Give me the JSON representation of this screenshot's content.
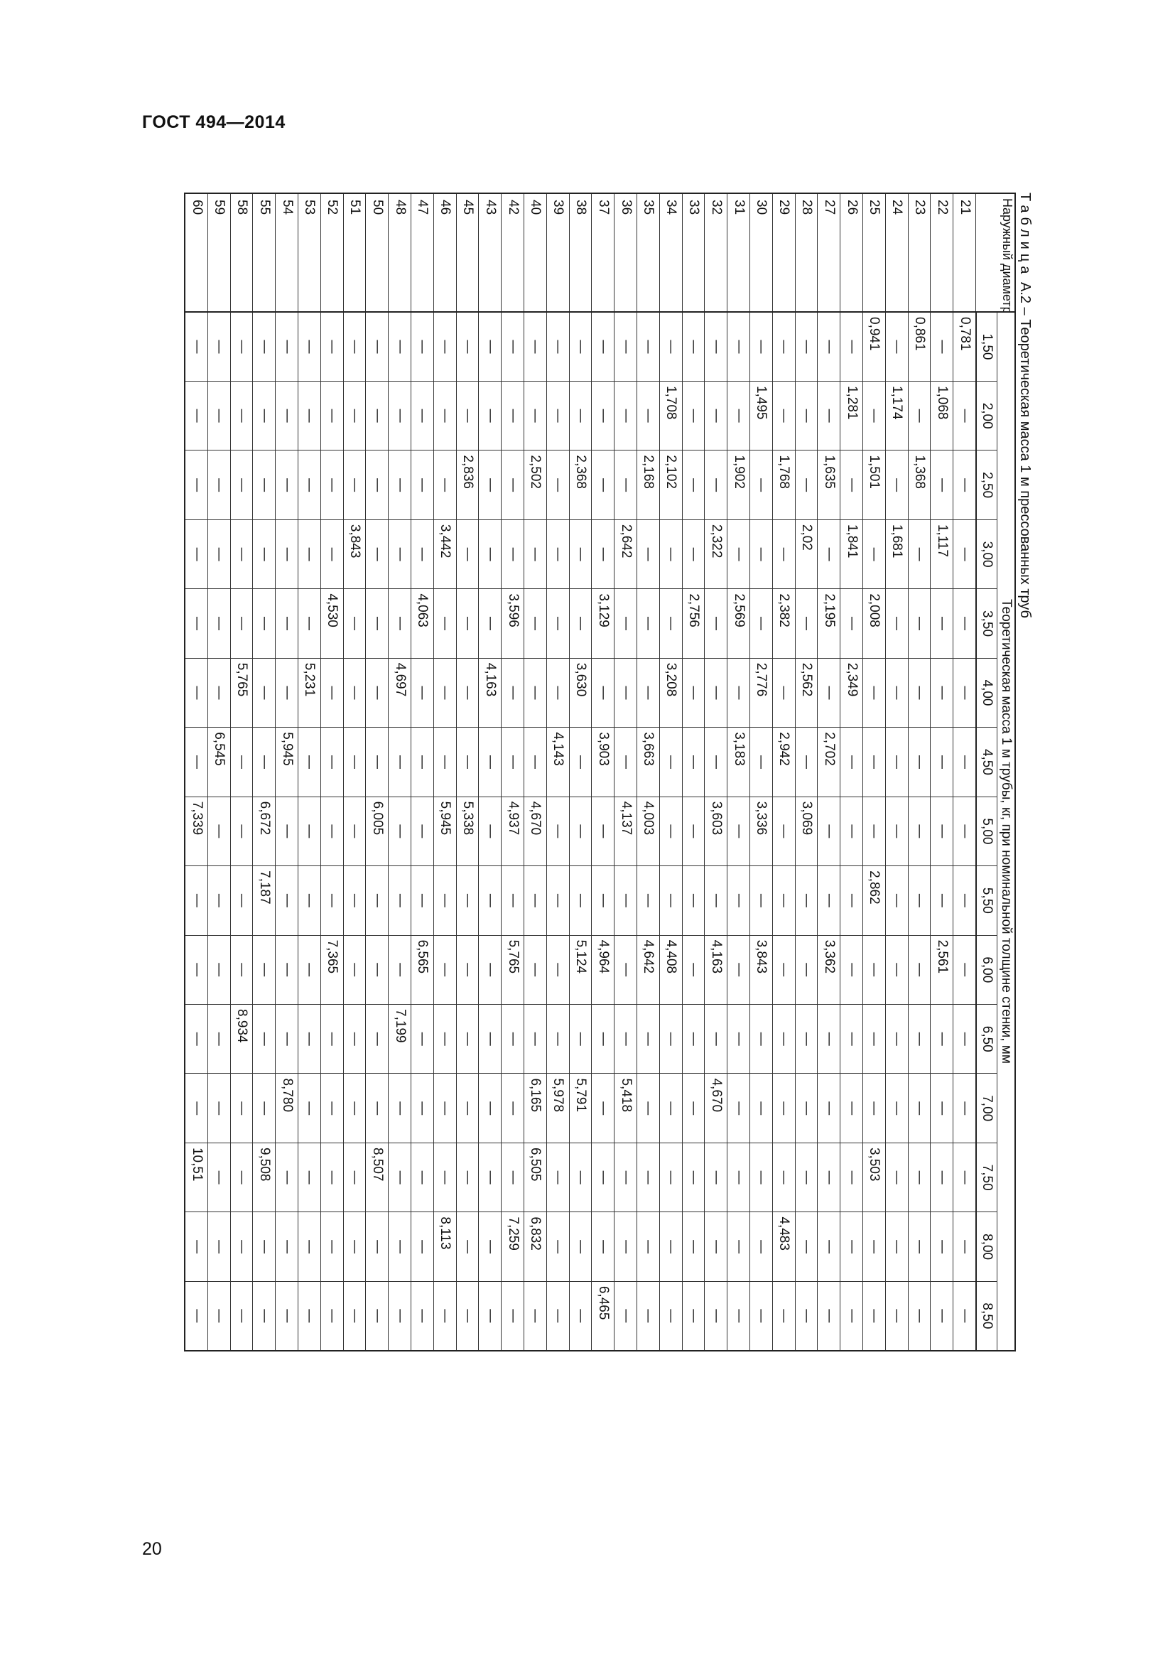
{
  "document": {
    "header": "ГОСТ 494—2014",
    "page_number": "20"
  },
  "table": {
    "title_prefix": "Таблица",
    "title_rest": "А.2 – Теоретическая масса 1 м прессованных труб",
    "diameter_header": "Наружный диаметр, мм",
    "group_header": "Теоретическая масса 1 м трубы, кг, при номинальной толщине стенки, мм",
    "thicknesses": [
      "1,50",
      "2,00",
      "2,50",
      "3,00",
      "3,50",
      "4,00",
      "4,50",
      "5,00",
      "5,50",
      "6,00",
      "6,50",
      "7,00",
      "7,50",
      "8,00",
      "8,50"
    ],
    "rows": [
      {
        "d": "21",
        "v": [
          "0,781",
          "—",
          "—",
          "—",
          "—",
          "—",
          "—",
          "—",
          "—",
          "—",
          "—",
          "—",
          "—",
          "—",
          "—"
        ]
      },
      {
        "d": "22",
        "v": [
          "—",
          "1,068",
          "—",
          "1,117",
          "—",
          "—",
          "—",
          "—",
          "—",
          "2,561",
          "—",
          "—",
          "—",
          "—",
          "—"
        ]
      },
      {
        "d": "23",
        "v": [
          "0,861",
          "—",
          "1,368",
          "—",
          "—",
          "—",
          "—",
          "—",
          "—",
          "—",
          "—",
          "—",
          "—",
          "—",
          "—"
        ]
      },
      {
        "d": "24",
        "v": [
          "—",
          "1,174",
          "—",
          "1,681",
          "—",
          "—",
          "—",
          "—",
          "—",
          "—",
          "—",
          "—",
          "—",
          "—",
          "—"
        ]
      },
      {
        "d": "25",
        "v": [
          "0,941",
          "—",
          "1,501",
          "—",
          "2,008",
          "—",
          "—",
          "—",
          "2,862",
          "—",
          "—",
          "—",
          "3,503",
          "—",
          "—"
        ]
      },
      {
        "d": "26",
        "v": [
          "—",
          "1,281",
          "—",
          "1,841",
          "—",
          "2,349",
          "—",
          "—",
          "—",
          "—",
          "—",
          "—",
          "—",
          "—",
          "—"
        ]
      },
      {
        "d": "27",
        "v": [
          "—",
          "—",
          "1,635",
          "—",
          "2,195",
          "—",
          "2,702",
          "—",
          "—",
          "3,362",
          "—",
          "—",
          "—",
          "—",
          "—"
        ]
      },
      {
        "d": "28",
        "v": [
          "—",
          "—",
          "—",
          "2,02",
          "—",
          "2,562",
          "—",
          "3,069",
          "—",
          "—",
          "—",
          "—",
          "—",
          "—",
          "—"
        ]
      },
      {
        "d": "29",
        "v": [
          "—",
          "—",
          "1,768",
          "—",
          "2,382",
          "—",
          "2,942",
          "—",
          "—",
          "—",
          "—",
          "—",
          "—",
          "4,483",
          "—"
        ]
      },
      {
        "d": "30",
        "v": [
          "—",
          "1,495",
          "—",
          "—",
          "—",
          "2,776",
          "—",
          "3,336",
          "—",
          "3,843",
          "—",
          "—",
          "—",
          "—",
          "—"
        ]
      },
      {
        "d": "31",
        "v": [
          "—",
          "—",
          "1,902",
          "—",
          "2,569",
          "—",
          "3,183",
          "—",
          "—",
          "—",
          "—",
          "—",
          "—",
          "—",
          "—"
        ]
      },
      {
        "d": "32",
        "v": [
          "—",
          "—",
          "—",
          "2,322",
          "—",
          "—",
          "—",
          "3,603",
          "—",
          "4,163",
          "—",
          "4,670",
          "—",
          "—",
          "—"
        ]
      },
      {
        "d": "33",
        "v": [
          "—",
          "—",
          "—",
          "—",
          "2,756",
          "—",
          "—",
          "—",
          "—",
          "—",
          "—",
          "—",
          "—",
          "—",
          "—"
        ]
      },
      {
        "d": "34",
        "v": [
          "—",
          "1,708",
          "2,102",
          "—",
          "—",
          "3,208",
          "—",
          "—",
          "—",
          "4,408",
          "—",
          "—",
          "—",
          "—",
          "—"
        ]
      },
      {
        "d": "35",
        "v": [
          "—",
          "—",
          "2,168",
          "—",
          "—",
          "—",
          "3,663",
          "4,003",
          "—",
          "4,642",
          "—",
          "—",
          "—",
          "—",
          "—"
        ]
      },
      {
        "d": "36",
        "v": [
          "—",
          "—",
          "—",
          "2,642",
          "—",
          "—",
          "—",
          "4,137",
          "—",
          "—",
          "—",
          "5,418",
          "—",
          "—",
          "—"
        ]
      },
      {
        "d": "37",
        "v": [
          "—",
          "—",
          "—",
          "—",
          "3,129",
          "—",
          "3,903",
          "—",
          "—",
          "4,964",
          "—",
          "—",
          "—",
          "—",
          "6,465"
        ]
      },
      {
        "d": "38",
        "v": [
          "—",
          "—",
          "2,368",
          "—",
          "—",
          "3,630",
          "—",
          "—",
          "—",
          "5,124",
          "—",
          "5,791",
          "—",
          "—",
          "—"
        ]
      },
      {
        "d": "39",
        "v": [
          "—",
          "—",
          "—",
          "—",
          "—",
          "—",
          "4,143",
          "—",
          "—",
          "—",
          "—",
          "5,978",
          "—",
          "—",
          "—"
        ]
      },
      {
        "d": "40",
        "v": [
          "—",
          "—",
          "2,502",
          "—",
          "—",
          "—",
          "—",
          "4,670",
          "—",
          "—",
          "—",
          "6,165",
          "6,505",
          "6,832",
          "—"
        ]
      },
      {
        "d": "42",
        "v": [
          "—",
          "—",
          "—",
          "—",
          "3,596",
          "—",
          "—",
          "4,937",
          "—",
          "5,765",
          "—",
          "—",
          "—",
          "7,259",
          "—"
        ]
      },
      {
        "d": "43",
        "v": [
          "—",
          "—",
          "—",
          "—",
          "—",
          "4,163",
          "—",
          "—",
          "—",
          "—",
          "—",
          "—",
          "—",
          "—",
          "—"
        ]
      },
      {
        "d": "45",
        "v": [
          "—",
          "—",
          "2,836",
          "—",
          "—",
          "—",
          "—",
          "5,338",
          "—",
          "—",
          "—",
          "—",
          "—",
          "—",
          "—"
        ]
      },
      {
        "d": "46",
        "v": [
          "—",
          "—",
          "—",
          "3,442",
          "—",
          "—",
          "—",
          "5,945",
          "—",
          "—",
          "—",
          "—",
          "—",
          "8,113",
          "—"
        ]
      },
      {
        "d": "47",
        "v": [
          "—",
          "—",
          "—",
          "—",
          "4,063",
          "—",
          "—",
          "—",
          "—",
          "6,565",
          "—",
          "—",
          "—",
          "—",
          "—"
        ]
      },
      {
        "d": "48",
        "v": [
          "—",
          "—",
          "—",
          "—",
          "—",
          "4,697",
          "—",
          "—",
          "—",
          "—",
          "7,199",
          "—",
          "—",
          "—",
          "—"
        ]
      },
      {
        "d": "50",
        "v": [
          "—",
          "—",
          "—",
          "—",
          "—",
          "—",
          "—",
          "6,005",
          "—",
          "—",
          "—",
          "—",
          "8,507",
          "—",
          "—"
        ]
      },
      {
        "d": "51",
        "v": [
          "—",
          "—",
          "—",
          "3,843",
          "—",
          "—",
          "—",
          "—",
          "—",
          "—",
          "—",
          "—",
          "—",
          "—",
          "—"
        ]
      },
      {
        "d": "52",
        "v": [
          "—",
          "—",
          "—",
          "—",
          "4,530",
          "—",
          "—",
          "—",
          "—",
          "7,365",
          "—",
          "—",
          "—",
          "—",
          "—"
        ]
      },
      {
        "d": "53",
        "v": [
          "—",
          "—",
          "—",
          "—",
          "—",
          "5,231",
          "—",
          "—",
          "—",
          "—",
          "—",
          "—",
          "—",
          "—",
          "—"
        ]
      },
      {
        "d": "54",
        "v": [
          "—",
          "—",
          "—",
          "—",
          "—",
          "—",
          "5,945",
          "—",
          "—",
          "—",
          "—",
          "8,780",
          "—",
          "—",
          "—"
        ]
      },
      {
        "d": "55",
        "v": [
          "—",
          "—",
          "—",
          "—",
          "—",
          "—",
          "—",
          "6,672",
          "7,187",
          "—",
          "—",
          "—",
          "9,508",
          "—",
          "—"
        ]
      },
      {
        "d": "58",
        "v": [
          "—",
          "—",
          "—",
          "—",
          "—",
          "5,765",
          "—",
          "—",
          "—",
          "—",
          "8,934",
          "—",
          "—",
          "—",
          "—"
        ]
      },
      {
        "d": "59",
        "v": [
          "—",
          "—",
          "—",
          "—",
          "—",
          "—",
          "6,545",
          "—",
          "—",
          "—",
          "—",
          "—",
          "—",
          "—",
          "—"
        ]
      },
      {
        "d": "60",
        "v": [
          "—",
          "—",
          "—",
          "—",
          "—",
          "—",
          "—",
          "7,339",
          "—",
          "—",
          "—",
          "—",
          "10,51",
          "—",
          "—"
        ]
      }
    ]
  }
}
